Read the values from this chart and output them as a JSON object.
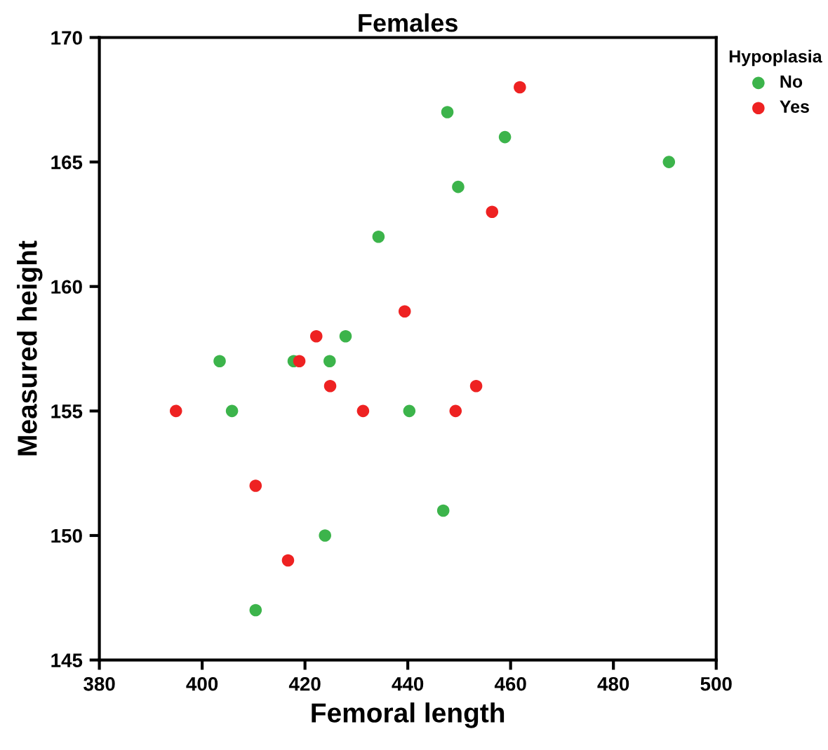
{
  "chart_data": {
    "type": "scatter",
    "title": "Females",
    "xlabel": "Femoral length",
    "ylabel": "Measured height",
    "legend_title": "Hypoplasia",
    "legend": "top right",
    "marker": "circle",
    "grid": false,
    "xlim": [
      380,
      500
    ],
    "xticks": [
      380,
      400,
      420,
      440,
      460,
      480,
      500
    ],
    "ylim": [
      145,
      170
    ],
    "yticks": [
      145,
      150,
      155,
      160,
      165,
      170
    ],
    "series": [
      {
        "name": "No",
        "color": "#3cb44b",
        "x": [
          447.7,
          449.8,
          458.9,
          490.8,
          434.3,
          427.9,
          403.4,
          417.8,
          424.8,
          405.8,
          440.3,
          446.9,
          423.9,
          410.4
        ],
        "values": [
          167,
          164,
          166,
          165,
          162,
          158,
          157,
          157,
          157,
          155,
          155,
          151,
          150,
          147
        ]
      },
      {
        "name": "Yes",
        "color": "#ee2222",
        "x": [
          461.8,
          456.4,
          439.4,
          422.2,
          418.9,
          424.9,
          453.3,
          394.9,
          431.3,
          449.3,
          410.4,
          416.7
        ],
        "values": [
          168,
          163,
          159,
          158,
          157,
          156,
          156,
          155,
          155,
          155,
          152,
          149
        ]
      }
    ]
  }
}
